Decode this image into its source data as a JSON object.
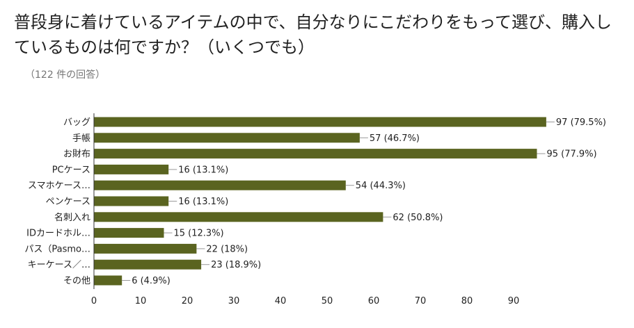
{
  "chart_data": {
    "type": "bar",
    "orientation": "horizontal",
    "title": "普段身に着けているアイテムの中で、自分なりにこだわりをもって選び、購入しているものは何ですか？（いくつでも）",
    "subtitle": "（122 件の回答）",
    "categories": [
      "バッグ",
      "手帳",
      "お財布",
      "PCケース",
      "スマホケース…",
      "ペンケース",
      "名刺入れ",
      "IDカードホル…",
      "パス（Pasmo…",
      "キーケース／…",
      "その他"
    ],
    "values": [
      97,
      57,
      95,
      16,
      54,
      16,
      62,
      15,
      22,
      23,
      6
    ],
    "data_labels": [
      "97 (79.5%)",
      "57 (46.7%)",
      "95 (77.9%)",
      "16 (13.1%)",
      "54 (44.3%)",
      "16 (13.1%)",
      "62 (50.8%)",
      "15 (12.3%)",
      "22 (18%)",
      "23 (18.9%)",
      "6 (4.9%)"
    ],
    "xlim": [
      0,
      100
    ],
    "ticks": [
      0,
      10,
      20,
      30,
      40,
      50,
      60,
      70,
      80,
      90
    ],
    "bar_color": "#5a6420",
    "axis_color": "#333333",
    "leader_color": "#999999",
    "grid": false,
    "legend": "none"
  }
}
